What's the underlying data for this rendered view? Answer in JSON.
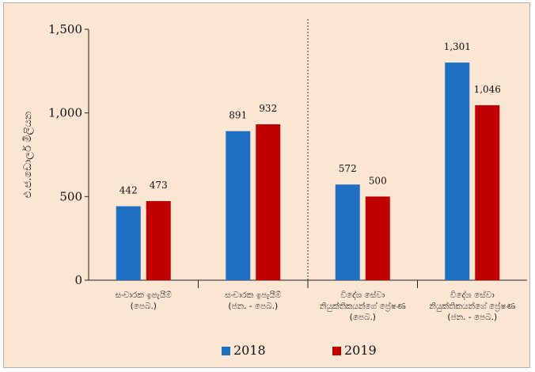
{
  "chart_data": {
    "type": "bar",
    "ylabel": "එ.ජ.ඩොලර් මිලියන",
    "ylim": [
      0,
      1500
    ],
    "yticks": [
      "0",
      "500",
      "1,000",
      "1,500"
    ],
    "ytick_values": [
      0,
      500,
      1000,
      1500
    ],
    "categories": [
      [
        "සංචාරක ඉපැයීම්",
        "(පෙබ.)"
      ],
      [
        "සංචාරක ඉපැයීම්",
        "(ජන. - පෙබ.)"
      ],
      [
        "විදේශ සේවා",
        "නියුක්තිකයන්ගේ ප්‍රේෂණ",
        "(පෙබ.)"
      ],
      [
        "විදේශ සේවා",
        "නියුක්තිකයන්ගේ ප්‍රේෂණ",
        "(ජන. - පෙබ.)"
      ]
    ],
    "series": [
      {
        "name": "2018",
        "color": "#1f6fc5",
        "values": [
          442,
          891,
          572,
          1301
        ],
        "labels": [
          "442",
          "891",
          "572",
          "1,301"
        ]
      },
      {
        "name": "2019",
        "color": "#c00000",
        "values": [
          473,
          932,
          500,
          1046
        ],
        "labels": [
          "473",
          "932",
          "500",
          "1,046"
        ]
      }
    ],
    "divider_after_category": 2,
    "grid": false,
    "legend_position": "bottom"
  }
}
